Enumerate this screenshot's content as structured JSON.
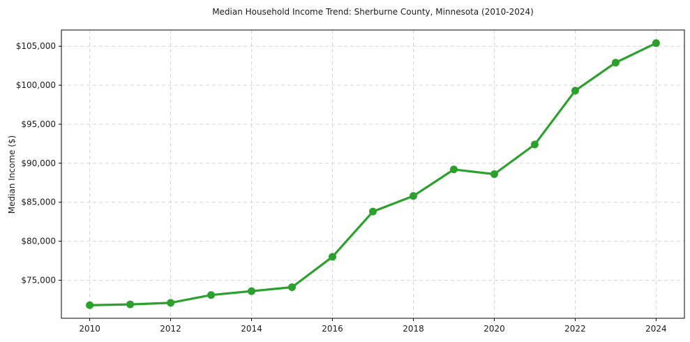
{
  "page": {
    "background": "#ffffff"
  },
  "chart_data": {
    "type": "line",
    "title": "Median Household Income Trend: Sherburne County, Minnesota (2010-2024)",
    "xlabel": "",
    "ylabel": "Median Income ($)",
    "x": [
      2010,
      2011,
      2012,
      2013,
      2014,
      2015,
      2016,
      2017,
      2018,
      2019,
      2020,
      2021,
      2022,
      2023,
      2024
    ],
    "series": [
      {
        "name": "Median Household Income",
        "values": [
          71800,
          71900,
          72100,
          73100,
          73600,
          74100,
          78000,
          83800,
          85800,
          89200,
          88600,
          92400,
          99300,
          102900,
          105400
        ],
        "color": "#2ca02c",
        "marker": "circle",
        "line_width": 3.2,
        "marker_radius": 5.5
      }
    ],
    "x_ticks": [
      2010,
      2012,
      2014,
      2016,
      2018,
      2020,
      2022,
      2024
    ],
    "x_tick_labels": [
      "2010",
      "2012",
      "2014",
      "2016",
      "2018",
      "2020",
      "2022",
      "2024"
    ],
    "y_ticks": [
      75000,
      80000,
      85000,
      90000,
      95000,
      100000,
      105000
    ],
    "y_tick_labels": [
      "$75,000",
      "$80,000",
      "$85,000",
      "$90,000",
      "$95,000",
      "$100,000",
      "$105,000"
    ],
    "xlim": [
      2009.3,
      2024.7
    ],
    "ylim": [
      70120,
      107080
    ],
    "grid": true,
    "grid_style": "dashed",
    "legend_position": "none"
  },
  "colors": {
    "grid": "#d4d4d4",
    "spine": "#000000",
    "text": "#1a1a1a",
    "accent": "#2ca02c"
  }
}
